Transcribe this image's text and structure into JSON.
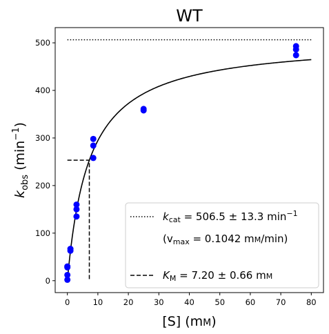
{
  "chart_data": {
    "type": "scatter",
    "title": "WT",
    "xlabel": {
      "main": "[S] (m",
      "smallcaps": "M",
      "close": ")"
    },
    "ylabel": {
      "k": "k",
      "sub": "obs",
      "unit_open": " (min",
      "sup": "−1",
      "unit_close": ")"
    },
    "xlim": [
      -4,
      84
    ],
    "ylim": [
      -25,
      532
    ],
    "x_ticks": [
      0,
      10,
      20,
      30,
      40,
      50,
      60,
      70,
      80
    ],
    "y_ticks": [
      0,
      100,
      200,
      300,
      400,
      500
    ],
    "grid": false,
    "series": [
      {
        "kind": "points",
        "color": "#0000ff",
        "points": [
          [
            0,
            2
          ],
          [
            0,
            12
          ],
          [
            0,
            28
          ],
          [
            0,
            30
          ],
          [
            1,
            63
          ],
          [
            1,
            67
          ],
          [
            3,
            135
          ],
          [
            3,
            150
          ],
          [
            3,
            160
          ],
          [
            8.5,
            258
          ],
          [
            8.5,
            284
          ],
          [
            8.5,
            298
          ],
          [
            25,
            358
          ],
          [
            25,
            361
          ],
          [
            75,
            474
          ],
          [
            75,
            486
          ],
          [
            75,
            493
          ]
        ]
      },
      {
        "kind": "michaelis-menten-fit",
        "color": "#000000",
        "kcat": 506.5,
        "km": 7.2,
        "x_range": [
          0,
          80
        ]
      },
      {
        "kind": "kcat-line",
        "color": "#000000",
        "style": "dotted",
        "y": 506.5,
        "x_range": [
          0,
          80
        ]
      },
      {
        "kind": "km-line",
        "color": "#000000",
        "style": "dashed",
        "x": 7.2,
        "y": 253.25
      }
    ],
    "legend": {
      "position": "lower-right",
      "entries": [
        {
          "style": "dotted",
          "k": "k",
          "sub": "cat",
          "text": " = 506.5 ± 13.3 min",
          "sup": "−1"
        },
        {
          "style": "none",
          "open": "(v",
          "sub": "max",
          "text": " = 0.1042 m",
          "smallcaps": "M",
          "close": "/min)"
        },
        {
          "style": "dashed",
          "k": "K",
          "sub": "M",
          "text": " = 7.20 ± 0.66 m",
          "smallcaps": "M"
        }
      ]
    }
  }
}
